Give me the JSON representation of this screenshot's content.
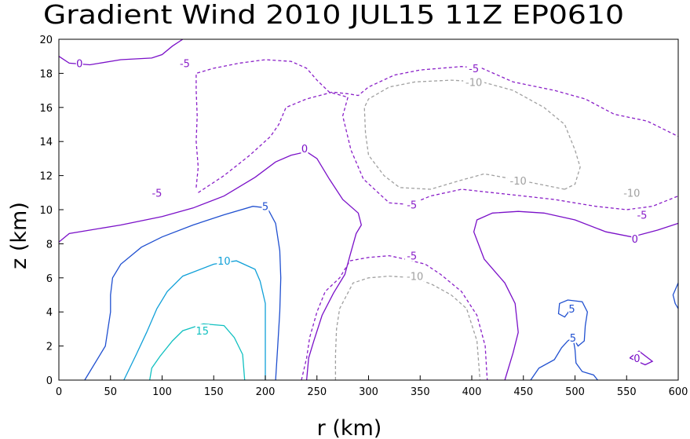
{
  "chart_data": {
    "type": "contour",
    "title": "Gradient Wind 2010 JUL15 11Z  EP0610",
    "xlabel": "r (km)",
    "ylabel": "z (km)",
    "xlim": [
      0,
      600
    ],
    "ylim": [
      0,
      20
    ],
    "xticks": [
      "0",
      "50",
      "100",
      "150",
      "200",
      "250",
      "300",
      "350",
      "400",
      "450",
      "500",
      "550",
      "600"
    ],
    "yticks": [
      "0",
      "2",
      "4",
      "6",
      "8",
      "10",
      "12",
      "14",
      "16",
      "18",
      "20"
    ],
    "grid": false,
    "levels": [
      {
        "value": 0,
        "color": "#7a10c8",
        "dash": "solid",
        "labels": [
          {
            "text": "0",
            "x": 20,
            "y": 18.6
          },
          {
            "text": "0",
            "x": 238,
            "y": 13.6
          },
          {
            "text": "0",
            "x": 558,
            "y": 8.3
          },
          {
            "text": "0",
            "x": 560,
            "y": 1.3
          }
        ],
        "lines": [
          [
            [
              0,
              19
            ],
            [
              10,
              18.6
            ],
            [
              30,
              18.5
            ],
            [
              60,
              18.8
            ],
            [
              90,
              18.9
            ],
            [
              100,
              19.1
            ],
            [
              110,
              19.6
            ],
            [
              120,
              20
            ]
          ],
          [
            [
              0,
              8.1
            ],
            [
              10,
              8.6
            ],
            [
              30,
              8.8
            ],
            [
              60,
              9.1
            ],
            [
              100,
              9.6
            ],
            [
              130,
              10.1
            ],
            [
              160,
              10.8
            ],
            [
              190,
              11.9
            ],
            [
              210,
              12.8
            ],
            [
              225,
              13.2
            ],
            [
              240,
              13.4
            ],
            [
              250,
              13
            ],
            [
              262,
              11.8
            ],
            [
              275,
              10.6
            ],
            [
              290,
              9.8
            ],
            [
              293,
              9.1
            ],
            [
              288,
              8.6
            ],
            [
              282,
              7.3
            ],
            [
              277,
              6.2
            ],
            [
              266,
              5.1
            ],
            [
              255,
              3.8
            ],
            [
              247,
              2.3
            ],
            [
              242,
              1.3
            ],
            [
              240,
              0
            ]
          ],
          [
            [
              432,
              0
            ],
            [
              440,
              1.6
            ],
            [
              445,
              2.8
            ],
            [
              442,
              4.5
            ],
            [
              432,
              5.7
            ],
            [
              412,
              7.1
            ],
            [
              402,
              8.7
            ],
            [
              405,
              9.4
            ],
            [
              420,
              9.8
            ],
            [
              445,
              9.9
            ],
            [
              470,
              9.8
            ],
            [
              500,
              9.4
            ],
            [
              530,
              8.7
            ],
            [
              555,
              8.4
            ],
            [
              580,
              8.8
            ],
            [
              600,
              9.2
            ]
          ],
          [
            [
              553,
              1.3
            ],
            [
              562,
              1.7
            ],
            [
              575,
              1.1
            ],
            [
              568,
              0.9
            ],
            [
              553,
              1.3
            ]
          ]
        ]
      },
      {
        "value": -5,
        "color": "#8a20c8",
        "dash": "dashed",
        "labels": [
          {
            "text": "-5",
            "x": 122,
            "y": 18.6
          },
          {
            "text": "-5",
            "x": 95,
            "y": 11
          },
          {
            "text": "-5",
            "x": 402,
            "y": 18.3
          },
          {
            "text": "-5",
            "x": 342,
            "y": 10.3
          },
          {
            "text": "-5",
            "x": 565,
            "y": 9.7
          },
          {
            "text": "-5",
            "x": 342,
            "y": 7.3
          }
        ],
        "lines": [
          [
            [
              133,
              11.3
            ],
            [
              135,
              12.5
            ],
            [
              133,
              14
            ],
            [
              134,
              15.5
            ],
            [
              133,
              17
            ],
            [
              133,
              18
            ],
            [
              150,
              18.3
            ],
            [
              175,
              18.6
            ],
            [
              200,
              18.8
            ],
            [
              225,
              18.7
            ],
            [
              240,
              18.3
            ],
            [
              250,
              17.6
            ],
            [
              262,
              16.9
            ],
            [
              280,
              16.6
            ]
          ],
          [
            [
              135,
              11
            ],
            [
              160,
              12
            ],
            [
              185,
              13.2
            ],
            [
              205,
              14.3
            ],
            [
              213,
              15
            ],
            [
              220,
              16
            ],
            [
              240,
              16.5
            ],
            [
              265,
              16.9
            ],
            [
              280,
              16.8
            ],
            [
              290,
              16.7
            ],
            [
              300,
              17.2
            ],
            [
              325,
              17.9
            ],
            [
              350,
              18.2
            ],
            [
              390,
              18.4
            ],
            [
              410,
              18.3
            ],
            [
              440,
              17.5
            ],
            [
              480,
              17
            ],
            [
              510,
              16.5
            ],
            [
              538,
              15.6
            ],
            [
              570,
              15.2
            ],
            [
              600,
              14.3
            ]
          ],
          [
            [
              280,
              16.6
            ],
            [
              275,
              15.5
            ],
            [
              283,
              13.5
            ],
            [
              295,
              11.8
            ],
            [
              320,
              10.4
            ],
            [
              340,
              10.3
            ],
            [
              360,
              10.8
            ],
            [
              390,
              11.2
            ],
            [
              420,
              11
            ],
            [
              450,
              10.8
            ],
            [
              480,
              10.6
            ],
            [
              520,
              10.2
            ],
            [
              550,
              10
            ],
            [
              575,
              10.2
            ],
            [
              600,
              10.8
            ]
          ],
          [
            [
              235,
              0
            ],
            [
              240,
              1.3
            ],
            [
              243,
              2.5
            ],
            [
              250,
              4
            ],
            [
              258,
              5.2
            ],
            [
              272,
              6
            ],
            [
              282,
              7
            ],
            [
              300,
              7.2
            ],
            [
              320,
              7.3
            ],
            [
              335,
              7.1
            ],
            [
              355,
              6.8
            ],
            [
              370,
              6.2
            ],
            [
              390,
              5.2
            ],
            [
              405,
              3.8
            ],
            [
              413,
              2
            ],
            [
              415,
              0
            ]
          ]
        ]
      },
      {
        "value": -10,
        "color": "#a0a0a0",
        "dash": "dashed",
        "labels": [
          {
            "text": "-10",
            "x": 402,
            "y": 17.5
          },
          {
            "text": "-10",
            "x": 445,
            "y": 11.7
          },
          {
            "text": "-10",
            "x": 555,
            "y": 11
          },
          {
            "text": "-10",
            "x": 345,
            "y": 6.1
          }
        ],
        "lines": [
          [
            [
              490,
              11.2
            ],
            [
              440,
              11.8
            ],
            [
              412,
              12.1
            ],
            [
              388,
              11.7
            ],
            [
              360,
              11.2
            ],
            [
              330,
              11.3
            ],
            [
              315,
              12
            ],
            [
              300,
              13.2
            ],
            [
              297,
              14.5
            ],
            [
              296,
              16
            ],
            [
              300,
              16.5
            ],
            [
              320,
              17.2
            ],
            [
              345,
              17.5
            ],
            [
              380,
              17.6
            ],
            [
              410,
              17.5
            ],
            [
              440,
              17
            ],
            [
              470,
              16
            ],
            [
              490,
              15
            ],
            [
              500,
              13.5
            ],
            [
              505,
              12.5
            ],
            [
              500,
              11.5
            ],
            [
              490,
              11.2
            ]
          ],
          [
            [
              268,
              0
            ],
            [
              268,
              1.5
            ],
            [
              269,
              3
            ],
            [
              272,
              4.2
            ],
            [
              285,
              5.7
            ],
            [
              300,
              6
            ],
            [
              320,
              6.1
            ],
            [
              345,
              6
            ],
            [
              362,
              5.6
            ],
            [
              380,
              5
            ],
            [
              395,
              4.2
            ],
            [
              405,
              2.3
            ],
            [
              408,
              0
            ]
          ]
        ]
      },
      {
        "value": 5,
        "color": "#2050d0",
        "dash": "solid",
        "labels": [
          {
            "text": "5",
            "x": 200,
            "y": 10.2
          },
          {
            "text": "5",
            "x": 497,
            "y": 4.2
          },
          {
            "text": "5",
            "x": 498,
            "y": 2.5
          }
        ],
        "lines": [
          [
            [
              25,
              0
            ],
            [
              45,
              2
            ],
            [
              50,
              4
            ],
            [
              50,
              5
            ],
            [
              52,
              6
            ],
            [
              60,
              6.8
            ],
            [
              80,
              7.8
            ],
            [
              100,
              8.4
            ],
            [
              130,
              9.1
            ],
            [
              160,
              9.7
            ],
            [
              188,
              10.2
            ],
            [
              202,
              10.1
            ],
            [
              210,
              9.2
            ],
            [
              214,
              7.6
            ],
            [
              215,
              6
            ],
            [
              214,
              4
            ],
            [
              212,
              2
            ],
            [
              210,
              0
            ]
          ],
          [
            [
              457,
              0
            ],
            [
              465,
              0.7
            ],
            [
              480,
              1.2
            ],
            [
              487,
              1.9
            ],
            [
              493,
              2.3
            ],
            [
              498,
              2.5
            ],
            [
              500,
              1.8
            ],
            [
              501,
              1
            ],
            [
              507,
              0.5
            ],
            [
              518,
              0.3
            ],
            [
              522,
              0
            ]
          ],
          [
            [
              495,
              4.1
            ],
            [
              490,
              3.7
            ],
            [
              484,
              3.9
            ],
            [
              485,
              4.5
            ],
            [
              493,
              4.7
            ],
            [
              507,
              4.6
            ],
            [
              512,
              4
            ],
            [
              510,
              3.2
            ],
            [
              509,
              2.3
            ],
            [
              503,
              2
            ],
            [
              498,
              2.5
            ]
          ],
          [
            [
              600,
              5.7
            ],
            [
              595,
              5
            ],
            [
              597,
              4.5
            ],
            [
              600,
              4.2
            ]
          ]
        ]
      },
      {
        "value": 10,
        "color": "#10a0d8",
        "dash": "solid",
        "labels": [
          {
            "text": "10",
            "x": 160,
            "y": 7
          }
        ],
        "lines": [
          [
            [
              63,
              0
            ],
            [
              75,
              1.5
            ],
            [
              85,
              2.8
            ],
            [
              95,
              4.2
            ],
            [
              105,
              5.2
            ],
            [
              120,
              6.1
            ],
            [
              150,
              6.8
            ],
            [
              172,
              7
            ],
            [
              190,
              6.5
            ],
            [
              195,
              5.8
            ],
            [
              200,
              4.5
            ],
            [
              200,
              3
            ],
            [
              200,
              1.5
            ],
            [
              200,
              0
            ]
          ]
        ]
      },
      {
        "value": 15,
        "color": "#10c0c0",
        "dash": "solid",
        "labels": [
          {
            "text": "15",
            "x": 139,
            "y": 2.9
          }
        ],
        "lines": [
          [
            [
              88,
              0
            ],
            [
              90,
              0.7
            ],
            [
              98,
              1.4
            ],
            [
              110,
              2.3
            ],
            [
              120,
              2.9
            ],
            [
              140,
              3.3
            ],
            [
              160,
              3.2
            ],
            [
              170,
              2.5
            ],
            [
              178,
              1.5
            ],
            [
              180,
              0
            ]
          ]
        ]
      }
    ]
  }
}
